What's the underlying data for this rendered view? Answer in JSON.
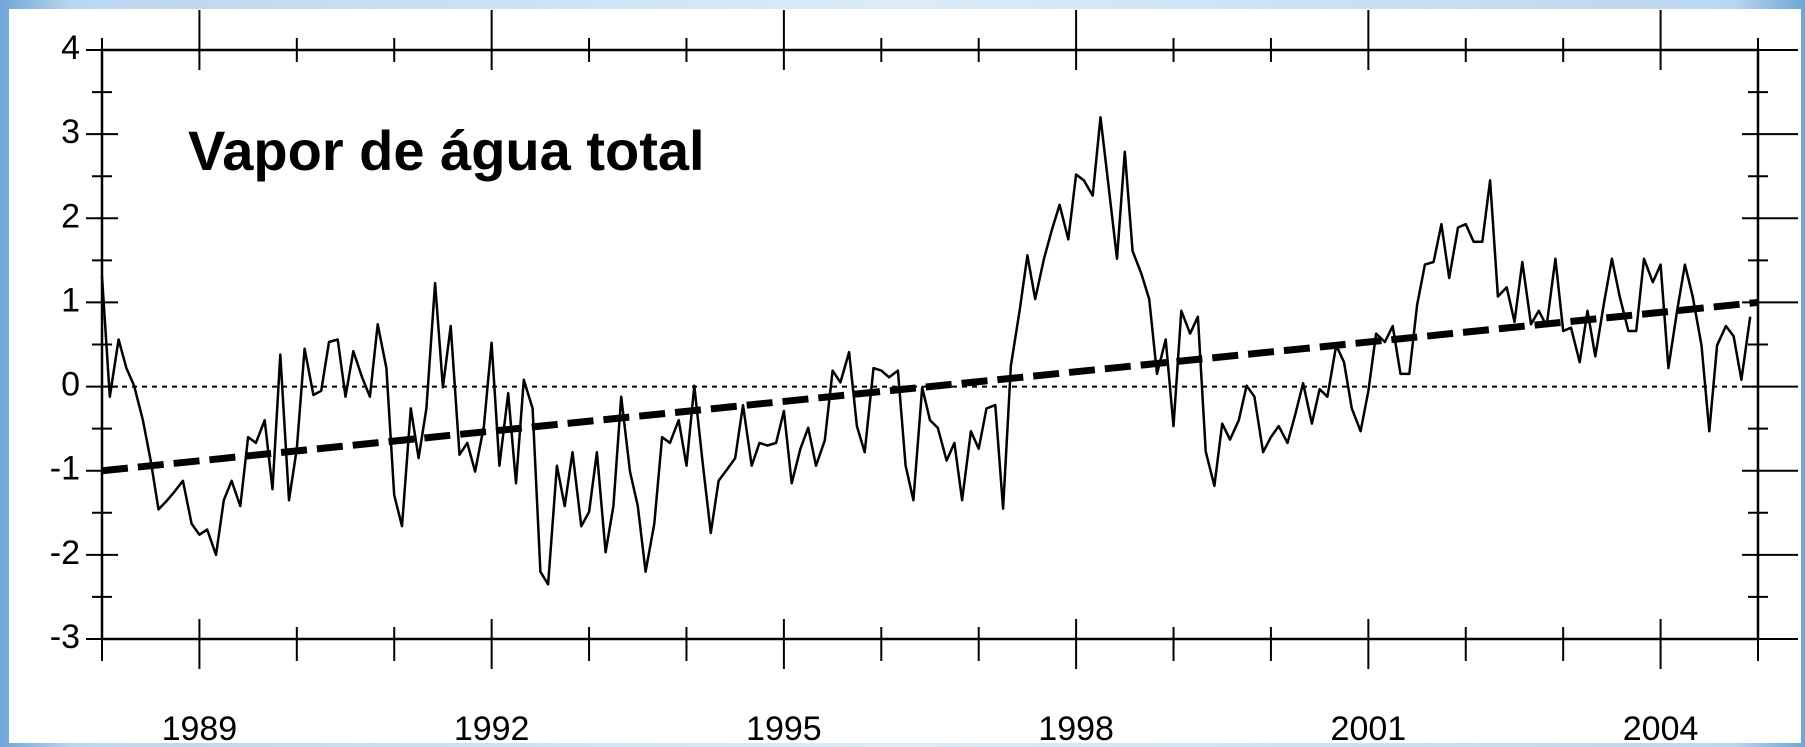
{
  "chart_data": {
    "type": "line",
    "title": "Vapor de água total",
    "x": [
      1988.0,
      1988.08,
      1988.17,
      1988.25,
      1988.33,
      1988.42,
      1988.5,
      1988.58,
      1988.67,
      1988.75,
      1988.83,
      1988.92,
      1989.0,
      1989.08,
      1989.17,
      1989.25,
      1989.33,
      1989.42,
      1989.5,
      1989.58,
      1989.67,
      1989.75,
      1989.83,
      1989.92,
      1990.0,
      1990.08,
      1990.17,
      1990.25,
      1990.33,
      1990.42,
      1990.5,
      1990.58,
      1990.67,
      1990.75,
      1990.83,
      1990.92,
      1991.0,
      1991.08,
      1991.17,
      1991.25,
      1991.33,
      1991.42,
      1991.5,
      1991.58,
      1991.67,
      1991.75,
      1991.83,
      1991.92,
      1992.0,
      1992.08,
      1992.17,
      1992.25,
      1992.33,
      1992.42,
      1992.5,
      1992.58,
      1992.67,
      1992.75,
      1992.83,
      1992.92,
      1993.0,
      1993.08,
      1993.17,
      1993.25,
      1993.33,
      1993.42,
      1993.5,
      1993.58,
      1993.67,
      1993.75,
      1993.83,
      1993.92,
      1994.0,
      1994.08,
      1994.17,
      1994.25,
      1994.33,
      1994.42,
      1994.5,
      1994.58,
      1994.67,
      1994.75,
      1994.83,
      1994.92,
      1995.0,
      1995.08,
      1995.17,
      1995.25,
      1995.33,
      1995.42,
      1995.5,
      1995.58,
      1995.67,
      1995.75,
      1995.83,
      1995.92,
      1996.0,
      1996.08,
      1996.17,
      1996.25,
      1996.33,
      1996.42,
      1996.5,
      1996.58,
      1996.67,
      1996.75,
      1996.83,
      1996.92,
      1997.0,
      1997.08,
      1997.17,
      1997.25,
      1997.33,
      1997.42,
      1997.5,
      1997.58,
      1997.67,
      1997.75,
      1997.83,
      1997.92,
      1998.0,
      1998.08,
      1998.17,
      1998.25,
      1998.33,
      1998.42,
      1998.5,
      1998.58,
      1998.67,
      1998.75,
      1998.83,
      1998.92,
      1999.0,
      1999.08,
      1999.17,
      1999.25,
      1999.33,
      1999.42,
      1999.5,
      1999.58,
      1999.67,
      1999.75,
      1999.83,
      1999.92,
      2000.0,
      2000.08,
      2000.17,
      2000.25,
      2000.33,
      2000.42,
      2000.5,
      2000.58,
      2000.67,
      2000.75,
      2000.83,
      2000.92,
      2001.0,
      2001.08,
      2001.17,
      2001.25,
      2001.33,
      2001.42,
      2001.5,
      2001.58,
      2001.67,
      2001.75,
      2001.83,
      2001.92,
      2002.0,
      2002.08,
      2002.17,
      2002.25,
      2002.33,
      2002.42,
      2002.5,
      2002.58,
      2002.67,
      2002.75,
      2002.83,
      2002.92,
      2003.0,
      2003.08,
      2003.17,
      2003.25,
      2003.33,
      2003.42,
      2003.5,
      2003.58,
      2003.67,
      2003.75,
      2003.83,
      2003.92,
      2004.0,
      2004.08,
      2004.17,
      2004.25,
      2004.33,
      2004.42,
      2004.5,
      2004.58,
      2004.67,
      2004.75,
      2004.83,
      2004.92
    ],
    "values": [
      1.31,
      -0.12,
      0.56,
      0.22,
      0.01,
      -0.4,
      -0.88,
      -1.46,
      -1.35,
      -1.24,
      -1.12,
      -1.63,
      -1.76,
      -1.7,
      -2.0,
      -1.35,
      -1.12,
      -1.42,
      -0.6,
      -0.67,
      -0.4,
      -1.22,
      0.38,
      -1.35,
      -0.74,
      0.45,
      -0.1,
      -0.05,
      0.53,
      0.56,
      -0.12,
      0.42,
      0.11,
      -0.12,
      0.74,
      0.22,
      -1.29,
      -1.66,
      -0.26,
      -0.85,
      -0.26,
      1.23,
      -0.01,
      0.72,
      -0.81,
      -0.67,
      -1.01,
      -0.47,
      0.52,
      -0.94,
      -0.08,
      -1.15,
      0.08,
      -0.26,
      -2.2,
      -2.35,
      -0.94,
      -1.42,
      -0.78,
      -1.66,
      -1.49,
      -0.78,
      -1.97,
      -1.42,
      -0.12,
      -1.01,
      -1.42,
      -2.2,
      -1.63,
      -0.6,
      -0.67,
      -0.4,
      -0.94,
      0.01,
      -0.94,
      -1.74,
      -1.12,
      -0.98,
      -0.85,
      -0.22,
      -0.94,
      -0.67,
      -0.7,
      -0.67,
      -0.29,
      -1.15,
      -0.74,
      -0.49,
      -0.94,
      -0.64,
      0.19,
      0.05,
      0.41,
      -0.47,
      -0.78,
      0.22,
      0.19,
      0.11,
      0.19,
      -0.94,
      -1.35,
      -0.01,
      -0.4,
      -0.49,
      -0.88,
      -0.67,
      -1.35,
      -0.53,
      -0.74,
      -0.26,
      -0.22,
      -1.45,
      0.25,
      0.9,
      1.56,
      1.04,
      1.52,
      1.86,
      2.16,
      1.75,
      2.52,
      2.45,
      2.27,
      3.2,
      2.41,
      1.52,
      2.79,
      1.61,
      1.34,
      1.04,
      0.15,
      0.56,
      -0.47,
      0.9,
      0.63,
      0.83,
      -0.77,
      -1.18,
      -0.44,
      -0.63,
      -0.4,
      0.01,
      -0.12,
      -0.78,
      -0.6,
      -0.47,
      -0.67,
      -0.33,
      0.04,
      -0.44,
      -0.03,
      -0.12,
      0.49,
      0.29,
      -0.26,
      -0.53,
      -0.05,
      0.63,
      0.53,
      0.72,
      0.15,
      0.15,
      0.97,
      1.45,
      1.48,
      1.93,
      1.29,
      1.89,
      1.93,
      1.72,
      1.72,
      2.45,
      1.07,
      1.18,
      0.77,
      1.48,
      0.74,
      0.9,
      0.72,
      1.52,
      0.66,
      0.7,
      0.29,
      0.9,
      0.36,
      1.0,
      1.52,
      1.07,
      0.66,
      0.66,
      1.52,
      1.24,
      1.45,
      0.22,
      0.9,
      1.45,
      1.07,
      0.49,
      -0.53,
      0.49,
      0.72,
      0.6,
      0.08,
      0.83
    ],
    "color": "#000000",
    "trend": {
      "x": [
        1988,
        2005
      ],
      "values": [
        -1.0,
        1.0
      ]
    },
    "reference_line": 0,
    "xlim": [
      1988,
      2005
    ],
    "xticks": [
      1989,
      1992,
      1995,
      1998,
      2001,
      2004
    ],
    "xminorticks": [
      1988,
      1990,
      1991,
      1993,
      1994,
      1996,
      1997,
      1999,
      2000,
      2002,
      2003,
      2005
    ],
    "ylim": [
      -3,
      4
    ],
    "yticks": [
      -3,
      -2,
      -1,
      0,
      1,
      2,
      3,
      4
    ],
    "yminorticks": [
      -2.5,
      -1.5,
      -0.5,
      0.5,
      1.5,
      2.5,
      3.5
    ]
  }
}
